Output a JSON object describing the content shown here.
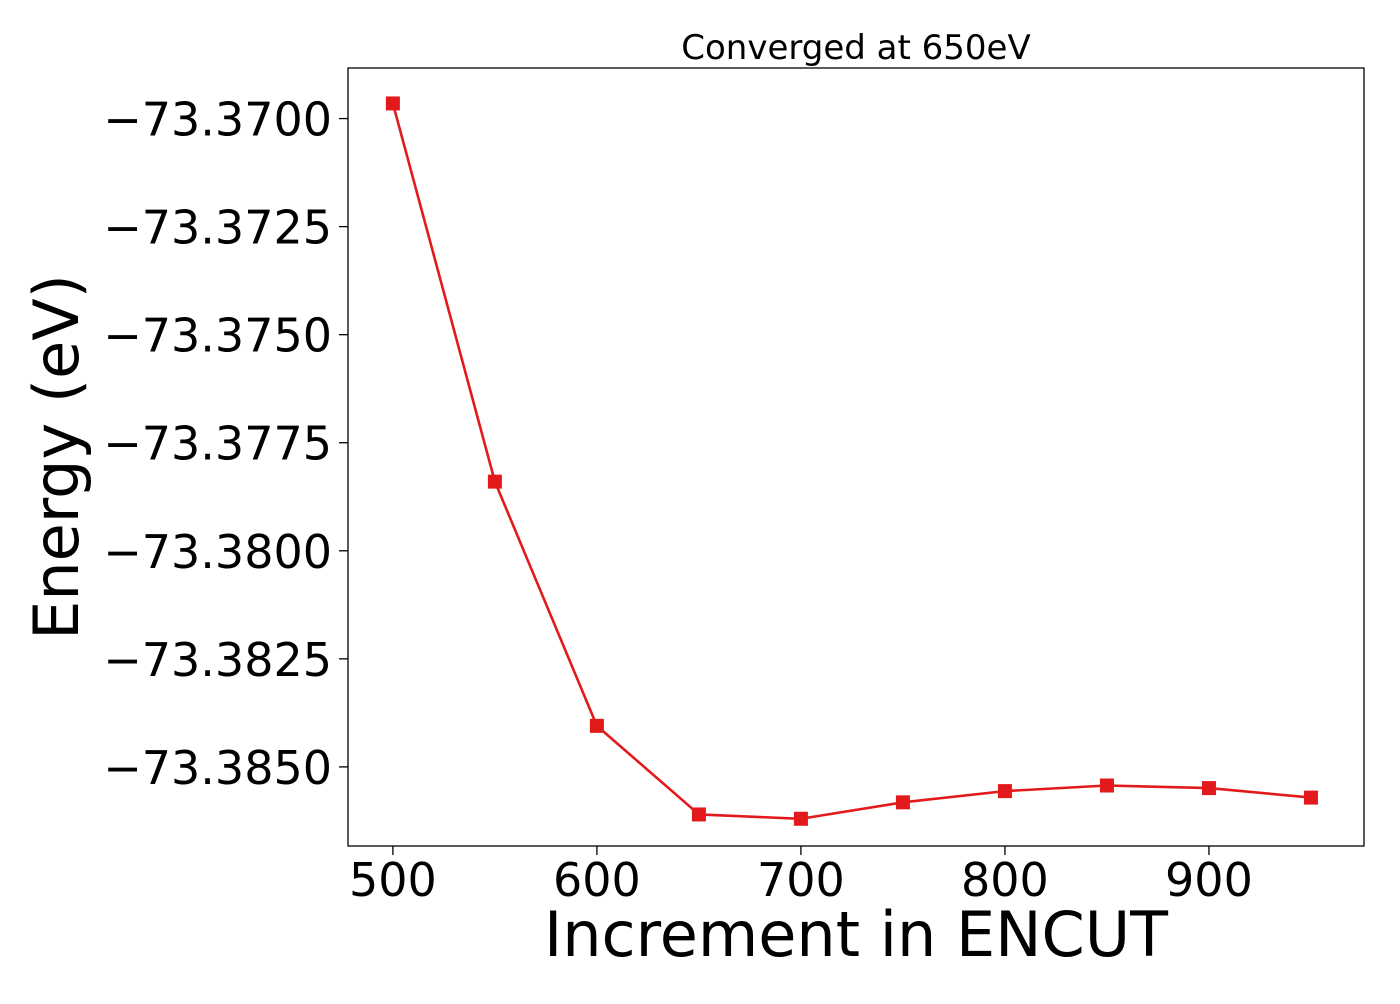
{
  "chart_data": {
    "type": "line",
    "title": "Converged at 650eV",
    "xlabel": "Increment in ENCUT",
    "ylabel": "Energy (eV)",
    "xlim": [
      478,
      976
    ],
    "ylim": [
      -73.38683,
      -73.36883
    ],
    "x_ticks": [
      500,
      600,
      700,
      800,
      900
    ],
    "x_tick_labels": [
      "500",
      "600",
      "700",
      "800",
      "900"
    ],
    "y_ticks": [
      -73.37,
      -73.3725,
      -73.375,
      -73.3775,
      -73.38,
      -73.3825,
      -73.385
    ],
    "y_tick_labels": [
      "−73.3700",
      "−73.3725",
      "−73.3750",
      "−73.3775",
      "−73.3800",
      "−73.3825",
      "−73.3850"
    ],
    "grid": false,
    "series": [
      {
        "color": "#e31a1c",
        "marker": "square",
        "x": [
          500,
          550,
          600,
          650,
          700,
          750,
          800,
          850,
          900,
          950
        ],
        "y": [
          -73.36965,
          -73.3784,
          -73.38405,
          -73.3861,
          -73.3862,
          -73.38582,
          -73.38556,
          -73.38543,
          -73.38549,
          -73.38571
        ]
      }
    ]
  }
}
